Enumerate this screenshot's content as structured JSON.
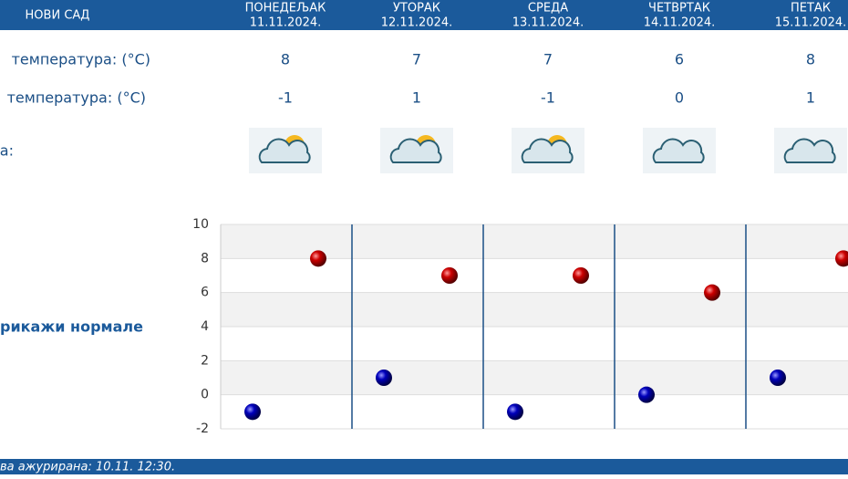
{
  "header": {
    "city": "НОВИ САД",
    "days": [
      {
        "name": "ПОНЕДЕЉАК",
        "date": "11.11.2024."
      },
      {
        "name": "УТОРАК",
        "date": "12.11.2024."
      },
      {
        "name": "СРЕДА",
        "date": "13.11.2024."
      },
      {
        "name": "ЧЕТВРТАК",
        "date": "14.11.2024."
      },
      {
        "name": "ПЕТАК",
        "date": "15.11.2024."
      }
    ]
  },
  "table": {
    "rows": [
      {
        "label": "температура: (°C)",
        "values": [
          8,
          7,
          7,
          6,
          8
        ]
      },
      {
        "label": "температура: (°C)",
        "values": [
          -1,
          1,
          -1,
          0,
          1
        ]
      },
      {
        "label": "а:"
      }
    ]
  },
  "link": "рикажи нормале",
  "footer": "ва ажурирана:  10.11.  12:30.",
  "chart_data": {
    "type": "scatter",
    "series": [
      {
        "color": "#cc0000",
        "values": [
          8,
          7,
          7,
          6,
          8
        ]
      },
      {
        "color": "#0000bb",
        "values": [
          -1,
          1,
          -1,
          0,
          1
        ]
      }
    ],
    "ylim": [
      -2,
      10
    ],
    "yticks": [
      -2,
      0,
      2,
      4,
      6,
      8,
      10
    ],
    "grid": true
  }
}
